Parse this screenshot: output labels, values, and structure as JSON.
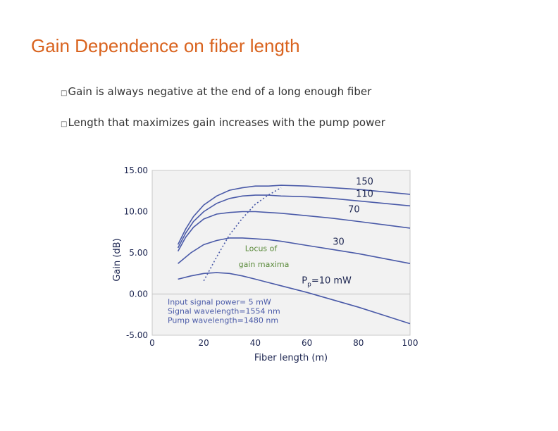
{
  "slide": {
    "title": "Gain Dependence on fiber length",
    "bullets": [
      {
        "marker": "□",
        "text": "Gain is always negative at the end of a long enough fiber"
      },
      {
        "marker": "□",
        "text": "Length that maximizes gain increases with the pump power"
      }
    ]
  },
  "chart_data": {
    "type": "line",
    "xlabel": "Fiber length  (m)",
    "ylabel": "Gain (dB)",
    "xlim": [
      0,
      100
    ],
    "ylim": [
      -5,
      15
    ],
    "x_ticks": [
      "0",
      "20",
      "40",
      "60",
      "80",
      "100"
    ],
    "y_ticks": [
      "15.00",
      "10.00",
      "5.00",
      "0.00",
      "-5.00"
    ],
    "grid": "horizontal line at 0",
    "line_color": "#4a5aa8",
    "annotation_color": "#5a8a3a",
    "series": [
      {
        "name": "150",
        "x": [
          10,
          13,
          16,
          20,
          25,
          30,
          35,
          40,
          45,
          50,
          60,
          70,
          80,
          90,
          100
        ],
        "values": [
          6.0,
          7.9,
          9.4,
          10.8,
          11.9,
          12.6,
          12.9,
          13.1,
          13.1,
          13.2,
          13.1,
          12.9,
          12.7,
          12.4,
          12.1
        ]
      },
      {
        "name": "110",
        "x": [
          10,
          13,
          16,
          20,
          25,
          30,
          35,
          40,
          45,
          50,
          60,
          70,
          80,
          90,
          100
        ],
        "values": [
          5.6,
          7.4,
          8.8,
          10.0,
          11.0,
          11.6,
          11.9,
          12.0,
          12.0,
          11.9,
          11.8,
          11.6,
          11.3,
          11.0,
          10.7
        ]
      },
      {
        "name": "70",
        "x": [
          10,
          13,
          16,
          20,
          25,
          30,
          35,
          40,
          45,
          50,
          60,
          70,
          80,
          90,
          100
        ],
        "values": [
          5.2,
          6.9,
          8.1,
          9.1,
          9.7,
          9.9,
          10.0,
          10.0,
          9.9,
          9.8,
          9.5,
          9.2,
          8.8,
          8.4,
          8.0
        ]
      },
      {
        "name": "30",
        "x": [
          10,
          15,
          20,
          25,
          30,
          35,
          40,
          45,
          50,
          60,
          70,
          80,
          90,
          100
        ],
        "values": [
          3.7,
          5.0,
          6.0,
          6.5,
          6.8,
          6.8,
          6.7,
          6.6,
          6.4,
          5.9,
          5.4,
          4.9,
          4.3,
          3.7
        ]
      },
      {
        "name": "10",
        "x": [
          10,
          15,
          20,
          25,
          30,
          35,
          40,
          45,
          50,
          60,
          70,
          80,
          90,
          100
        ],
        "values": [
          1.8,
          2.2,
          2.5,
          2.6,
          2.5,
          2.2,
          1.8,
          1.4,
          1.0,
          0.2,
          -0.7,
          -1.6,
          -2.6,
          -3.6
        ]
      }
    ],
    "series_labels": [
      {
        "text": "150",
        "x": 79,
        "y": 13.3
      },
      {
        "text": "110",
        "x": 79,
        "y": 11.8
      },
      {
        "text": "70",
        "x": 76,
        "y": 9.9
      },
      {
        "text": "30",
        "x": 70,
        "y": 6.0
      },
      {
        "text": "P =10 mW",
        "x": 58,
        "y": 1.3
      }
    ],
    "locus": {
      "name": "Locus of gain maxima",
      "x": [
        20,
        25,
        30,
        35,
        40,
        45,
        50
      ],
      "values": [
        1.6,
        4.5,
        7.2,
        9.2,
        10.9,
        12.0,
        12.9
      ]
    },
    "annotations": {
      "locus_line1": "Locus of",
      "locus_line2": "gain maxima",
      "pump_label_subscript": "p",
      "conditions": [
        "Input signal power= 5 mW",
        "Signal wavelength=1554 nm",
        "Pump wavelength=1480 nm"
      ]
    }
  }
}
